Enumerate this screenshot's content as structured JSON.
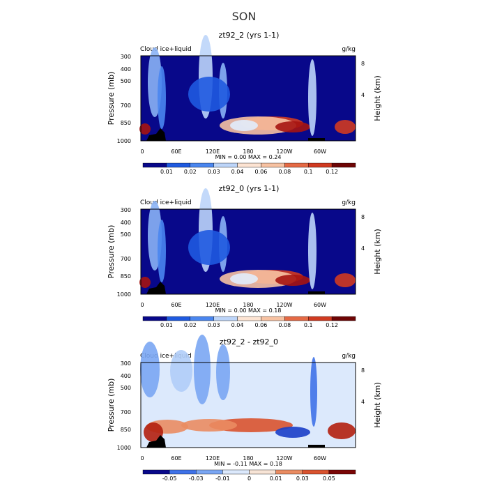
{
  "figure": {
    "title": "SON"
  },
  "colors": {
    "field_scale": [
      "#08088a",
      "#0a2fbf",
      "#1f5ae0",
      "#4a86ef",
      "#8ab3f5",
      "#bdd5f9",
      "#e1ecfc",
      "#fde4d3",
      "#f7c2a2",
      "#ef9a70",
      "#e56a45",
      "#d03a20",
      "#a61411",
      "#6e0505"
    ],
    "diff_scale": [
      "#08088a",
      "#1a3ec8",
      "#3f72e8",
      "#7aa6f3",
      "#b0cdf8",
      "#dce9fc",
      "#f7e4d6",
      "#f4c0a0",
      "#ea8c62",
      "#d9532f",
      "#b3200f",
      "#7a0505"
    ]
  },
  "chart_data": [
    {
      "type": "heatmap",
      "title": "zt92_2 (yrs 1-1)",
      "left_label": "Cloud ice+liquid",
      "right_label": "g/kg",
      "ylabel": "Pressure (mb)",
      "y2label": "Height (km)",
      "x_ticks": [
        "0",
        "60E",
        "120E",
        "180",
        "120W",
        "60W"
      ],
      "y_ticks": [
        "300",
        "400",
        "500",
        "700",
        "850",
        "1000"
      ],
      "y2_ticks": [
        "8",
        "4"
      ],
      "stats": "MIN =    0.00   MAX =    0.24",
      "colorbar_labels": [
        "0.01",
        "0.02",
        "0.03",
        "0.04",
        "0.06",
        "0.08",
        "0.1",
        "0.12"
      ],
      "colorbar_levels": [
        0.01,
        0.02,
        0.03,
        0.04,
        0.06,
        0.08,
        0.1,
        0.12
      ]
    },
    {
      "type": "heatmap",
      "title": "zt92_0 (yrs 1-1)",
      "left_label": "Cloud ice+liquid",
      "right_label": "g/kg",
      "ylabel": "Pressure (mb)",
      "y2label": "Height (km)",
      "x_ticks": [
        "0",
        "60E",
        "120E",
        "180",
        "120W",
        "60W"
      ],
      "y_ticks": [
        "300",
        "400",
        "500",
        "700",
        "850",
        "1000"
      ],
      "y2_ticks": [
        "8",
        "4"
      ],
      "stats": "MIN =    0.00   MAX =    0.18",
      "colorbar_labels": [
        "0.01",
        "0.02",
        "0.03",
        "0.04",
        "0.06",
        "0.08",
        "0.1",
        "0.12"
      ],
      "colorbar_levels": [
        0.01,
        0.02,
        0.03,
        0.04,
        0.06,
        0.08,
        0.1,
        0.12
      ]
    },
    {
      "type": "heatmap",
      "title": "zt92_2 - zt92_0",
      "left_label": "Cloud ice+liquid",
      "right_label": "g/kg",
      "ylabel": "Pressure (mb)",
      "y2label": "Height (km)",
      "x_ticks": [
        "0",
        "60E",
        "120E",
        "180",
        "120W",
        "60W"
      ],
      "y_ticks": [
        "300",
        "400",
        "500",
        "700",
        "850",
        "1000"
      ],
      "y2_ticks": [
        "8",
        "4"
      ],
      "stats": "MIN =   -0.11   MAX =    0.18",
      "colorbar_labels": [
        "-0.05",
        "-0.03",
        "-0.01",
        "0",
        "0.01",
        "0.03",
        "0.05"
      ],
      "colorbar_levels": [
        -0.05,
        -0.03,
        -0.01,
        0,
        0.01,
        0.03,
        0.05
      ]
    }
  ]
}
